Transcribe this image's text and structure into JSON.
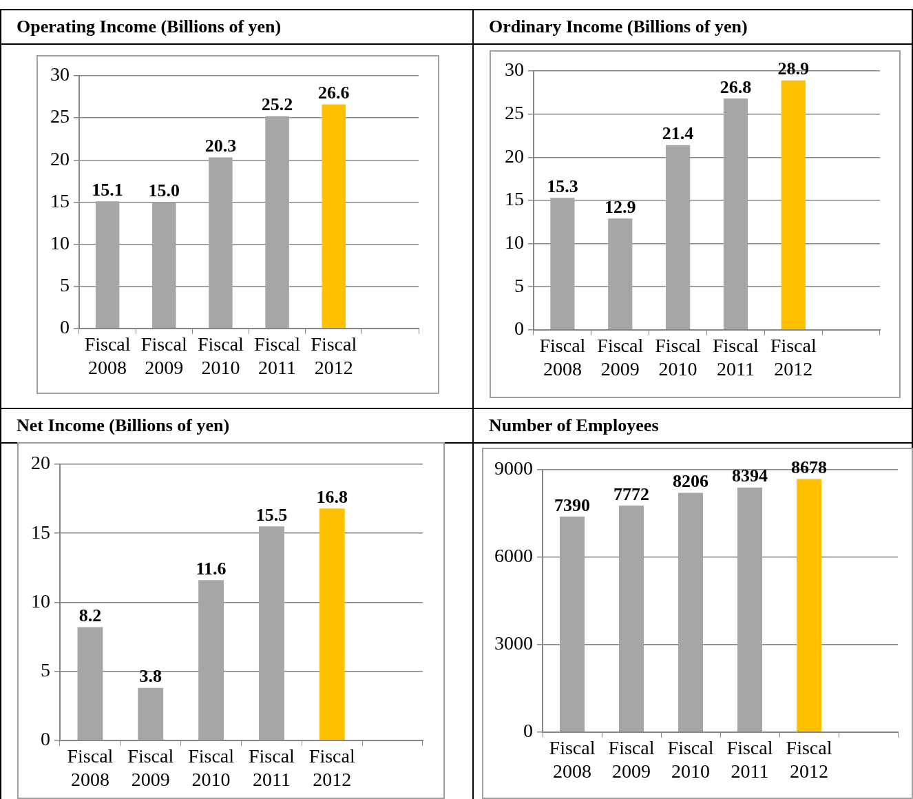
{
  "chart_data": [
    {
      "type": "bar",
      "title": "Operating Income (Billions of yen)",
      "categories": [
        "Fiscal 2008",
        "Fiscal 2009",
        "Fiscal 2010",
        "Fiscal 2011",
        "Fiscal 2012",
        null
      ],
      "values": [
        15.1,
        15.0,
        20.3,
        25.2,
        26.6,
        null
      ],
      "value_labels": [
        "15.1",
        "15.0",
        "20.3",
        "25.2",
        "26.6",
        null
      ],
      "colors": [
        "#a6a6a6",
        "#a6a6a6",
        "#a6a6a6",
        "#a6a6a6",
        "#ffc000",
        "#a6a6a6"
      ],
      "ylim": [
        0,
        30
      ],
      "yticks": [
        0,
        5,
        10,
        15,
        20,
        25,
        30
      ],
      "grid": "y"
    },
    {
      "type": "bar",
      "title": "Ordinary Income (Billions of yen)",
      "categories": [
        "Fiscal 2008",
        "Fiscal 2009",
        "Fiscal 2010",
        "Fiscal 2011",
        "Fiscal 2012",
        null
      ],
      "values": [
        15.3,
        12.9,
        21.4,
        26.8,
        28.9,
        null
      ],
      "value_labels": [
        "15.3",
        "12.9",
        "21.4",
        "26.8",
        "28.9",
        null
      ],
      "colors": [
        "#a6a6a6",
        "#a6a6a6",
        "#a6a6a6",
        "#a6a6a6",
        "#ffc000",
        "#a6a6a6"
      ],
      "ylim": [
        0,
        30
      ],
      "yticks": [
        0,
        5,
        10,
        15,
        20,
        25,
        30
      ],
      "grid": "y"
    },
    {
      "type": "bar",
      "title": "Net Income (Billions of yen)",
      "categories": [
        "Fiscal 2008",
        "Fiscal 2009",
        "Fiscal 2010",
        "Fiscal 2011",
        "Fiscal 2012",
        null
      ],
      "values": [
        8.2,
        3.8,
        11.6,
        15.5,
        16.8,
        null
      ],
      "value_labels": [
        "8.2",
        "3.8",
        "11.6",
        "15.5",
        "16.8",
        null
      ],
      "colors": [
        "#a6a6a6",
        "#a6a6a6",
        "#a6a6a6",
        "#a6a6a6",
        "#ffc000",
        "#a6a6a6"
      ],
      "ylim": [
        0,
        20
      ],
      "yticks": [
        0,
        5,
        10,
        15,
        20
      ],
      "grid": "y"
    },
    {
      "type": "bar",
      "title": "Number of Employees",
      "categories": [
        "Fiscal 2008",
        "Fiscal 2009",
        "Fiscal 2010",
        "Fiscal 2011",
        "Fiscal 2012",
        null
      ],
      "values": [
        7390,
        7772,
        8206,
        8394,
        8678,
        null
      ],
      "value_labels": [
        "7390",
        "7772",
        "8206",
        "8394",
        "8678",
        null
      ],
      "colors": [
        "#a6a6a6",
        "#a6a6a6",
        "#a6a6a6",
        "#a6a6a6",
        "#ffc000",
        "#a6a6a6"
      ],
      "ylim": [
        0,
        9000
      ],
      "yticks": [
        0,
        3000,
        6000,
        9000
      ],
      "grid": "y"
    }
  ]
}
